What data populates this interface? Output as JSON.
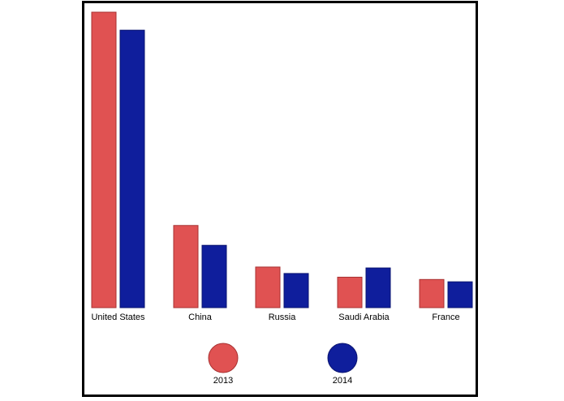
{
  "chart_data": {
    "type": "bar",
    "categories": [
      "United States",
      "China",
      "Russia",
      "Saudi Arabia",
      "France"
    ],
    "series": [
      {
        "name": "2013",
        "color": "#e05252",
        "stroke": "#a83232",
        "values": [
          640,
          178,
          88,
          66,
          61
        ]
      },
      {
        "name": "2014",
        "color": "#0f1e9c",
        "stroke": "#0a1470",
        "values": [
          601,
          135,
          74,
          86,
          56
        ]
      }
    ],
    "title": "",
    "xlabel": "",
    "ylabel": "",
    "ylim": [
      0,
      640
    ],
    "grid": false,
    "legend": {
      "placement": "bottom",
      "marker": "circle"
    }
  }
}
